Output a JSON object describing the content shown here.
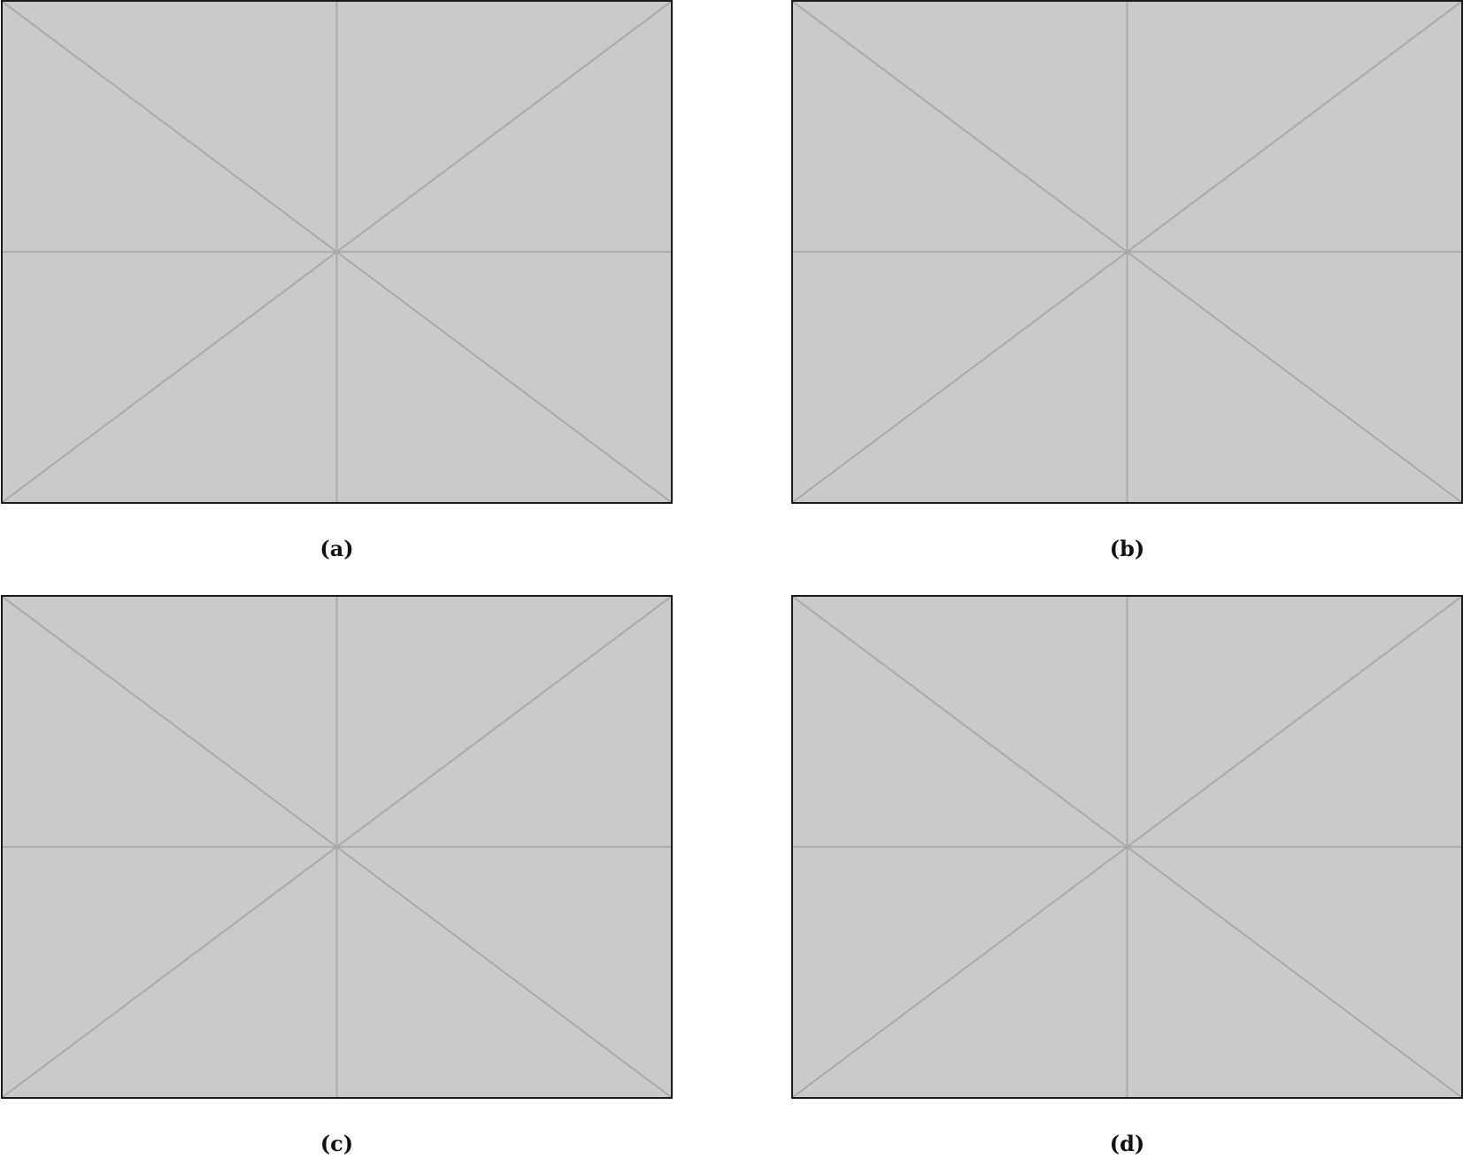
{
  "figure": {
    "panels": [
      {
        "id": "a",
        "caption": "(a)",
        "kind": "image-placeholder"
      },
      {
        "id": "b",
        "caption": "(b)",
        "kind": "image-placeholder"
      },
      {
        "id": "c",
        "caption": "(c)",
        "kind": "image-placeholder"
      },
      {
        "id": "d",
        "caption": "(d)",
        "kind": "image-placeholder"
      }
    ]
  },
  "colors": {
    "placeholder_fill": "#cacaca",
    "placeholder_lines": "#a9a9a9",
    "frame": "#1a1a1a"
  }
}
